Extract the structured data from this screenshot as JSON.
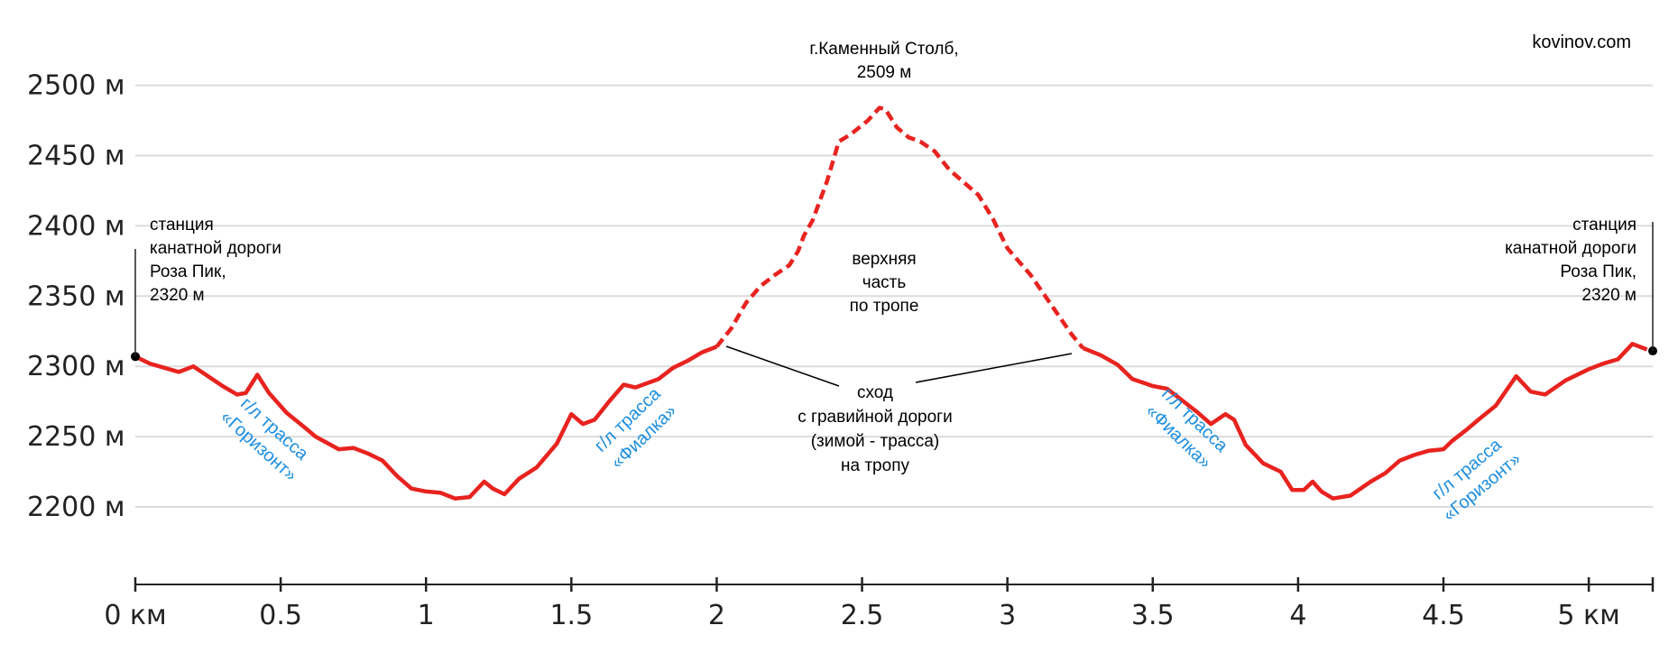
{
  "chart_data": {
    "type": "line",
    "xlim": [
      0,
      5.22
    ],
    "ylim": [
      2160,
      2520
    ],
    "x_ticks": [
      0,
      0.5,
      1,
      1.5,
      2,
      2.5,
      3,
      3.5,
      4,
      4.5,
      5
    ],
    "x_tick_labels": [
      "0 км",
      "0.5",
      "1",
      "1.5",
      "2",
      "2.5",
      "3",
      "3.5",
      "4",
      "4.5",
      "5 км"
    ],
    "y_ticks": [
      2200,
      2250,
      2300,
      2350,
      2400,
      2450,
      2500
    ],
    "y_tick_labels": [
      "2200 м",
      "2250 м",
      "2300 м",
      "2350 м",
      "2400 м",
      "2450 м",
      "2500 м"
    ],
    "grid": true,
    "series": [
      {
        "style": "solid",
        "color": "#e8231f",
        "points": [
          [
            0,
            2307
          ],
          [
            0.05,
            2302
          ],
          [
            0.1,
            2299
          ],
          [
            0.15,
            2296
          ],
          [
            0.2,
            2300
          ],
          [
            0.25,
            2293
          ],
          [
            0.3,
            2286
          ],
          [
            0.35,
            2280
          ],
          [
            0.38,
            2281
          ],
          [
            0.42,
            2294
          ],
          [
            0.46,
            2281
          ],
          [
            0.52,
            2267
          ],
          [
            0.58,
            2257
          ],
          [
            0.62,
            2250
          ],
          [
            0.7,
            2241
          ],
          [
            0.75,
            2242
          ],
          [
            0.8,
            2238
          ],
          [
            0.85,
            2233
          ],
          [
            0.9,
            2222
          ],
          [
            0.95,
            2213
          ],
          [
            1.0,
            2211
          ],
          [
            1.05,
            2210
          ],
          [
            1.1,
            2206
          ],
          [
            1.15,
            2207
          ],
          [
            1.2,
            2218
          ],
          [
            1.23,
            2213
          ],
          [
            1.27,
            2209
          ],
          [
            1.32,
            2220
          ],
          [
            1.38,
            2228
          ],
          [
            1.45,
            2245
          ],
          [
            1.5,
            2266
          ],
          [
            1.54,
            2259
          ],
          [
            1.58,
            2262
          ],
          [
            1.63,
            2275
          ],
          [
            1.68,
            2287
          ],
          [
            1.72,
            2285
          ],
          [
            1.8,
            2291
          ],
          [
            1.85,
            2299
          ],
          [
            1.9,
            2304
          ],
          [
            1.95,
            2310
          ],
          [
            2.0,
            2314
          ]
        ]
      },
      {
        "style": "dashed",
        "color": "#e8231f",
        "points": [
          [
            2.0,
            2314
          ],
          [
            2.05,
            2327
          ],
          [
            2.1,
            2345
          ],
          [
            2.15,
            2357
          ],
          [
            2.2,
            2365
          ],
          [
            2.25,
            2372
          ],
          [
            2.28,
            2382
          ],
          [
            2.3,
            2393
          ],
          [
            2.33,
            2404
          ],
          [
            2.38,
            2432
          ],
          [
            2.42,
            2460
          ],
          [
            2.46,
            2465
          ],
          [
            2.52,
            2475
          ],
          [
            2.56,
            2484
          ],
          [
            2.58,
            2483
          ],
          [
            2.62,
            2470
          ],
          [
            2.66,
            2463
          ],
          [
            2.7,
            2460
          ],
          [
            2.75,
            2453
          ],
          [
            2.8,
            2440
          ],
          [
            2.9,
            2422
          ],
          [
            2.95,
            2405
          ],
          [
            3.0,
            2384
          ],
          [
            3.08,
            2365
          ],
          [
            3.15,
            2344
          ],
          [
            3.22,
            2323
          ],
          [
            3.26,
            2313
          ]
        ]
      },
      {
        "style": "solid",
        "color": "#e8231f",
        "points": [
          [
            3.26,
            2313
          ],
          [
            3.32,
            2308
          ],
          [
            3.38,
            2301
          ],
          [
            3.43,
            2291
          ],
          [
            3.5,
            2286
          ],
          [
            3.55,
            2284
          ],
          [
            3.6,
            2276
          ],
          [
            3.65,
            2268
          ],
          [
            3.7,
            2259
          ],
          [
            3.75,
            2266
          ],
          [
            3.78,
            2262
          ],
          [
            3.82,
            2244
          ],
          [
            3.88,
            2231
          ],
          [
            3.94,
            2225
          ],
          [
            3.98,
            2212
          ],
          [
            4.02,
            2212
          ],
          [
            4.05,
            2218
          ],
          [
            4.08,
            2211
          ],
          [
            4.12,
            2206
          ],
          [
            4.18,
            2208
          ],
          [
            4.25,
            2218
          ],
          [
            4.3,
            2224
          ],
          [
            4.35,
            2233
          ],
          [
            4.4,
            2237
          ],
          [
            4.45,
            2240
          ],
          [
            4.5,
            2241
          ],
          [
            4.53,
            2247
          ],
          [
            4.58,
            2255
          ],
          [
            4.62,
            2262
          ],
          [
            4.68,
            2272
          ],
          [
            4.75,
            2293
          ],
          [
            4.8,
            2282
          ],
          [
            4.85,
            2280
          ],
          [
            4.92,
            2290
          ],
          [
            5.0,
            2298
          ],
          [
            5.05,
            2302
          ],
          [
            5.1,
            2305
          ],
          [
            5.15,
            2316
          ],
          [
            5.2,
            2312
          ]
        ]
      }
    ],
    "endpoints": [
      [
        0,
        2307
      ],
      [
        5.22,
        2311
      ]
    ],
    "annotations": {
      "source": "kovinov.com",
      "summit": [
        "г.Каменный Столб,",
        "2509 м"
      ],
      "station_left": [
        "станция",
        "канатной дороги",
        "Роза Пик,",
        "2320 м"
      ],
      "station_right": [
        "станция",
        "канатной дороги",
        "Роза Пик,",
        "2320 м"
      ],
      "upper_part": [
        "верхняя",
        "часть",
        "по тропе"
      ],
      "descent": [
        "сход",
        "с гравийной дороги",
        "(зимой - трасса)",
        "на тропу"
      ],
      "ski_horizon_left": [
        "г/л трасса",
        "«Горизонт»"
      ],
      "ski_fialka_left": [
        "г/л трасса",
        "«Фиалка»"
      ],
      "ski_fialka_right": [
        "г/л трасса",
        "«Фиалка»"
      ],
      "ski_horizon_right": [
        "г/л трасса",
        "«Горизонт»"
      ]
    }
  }
}
